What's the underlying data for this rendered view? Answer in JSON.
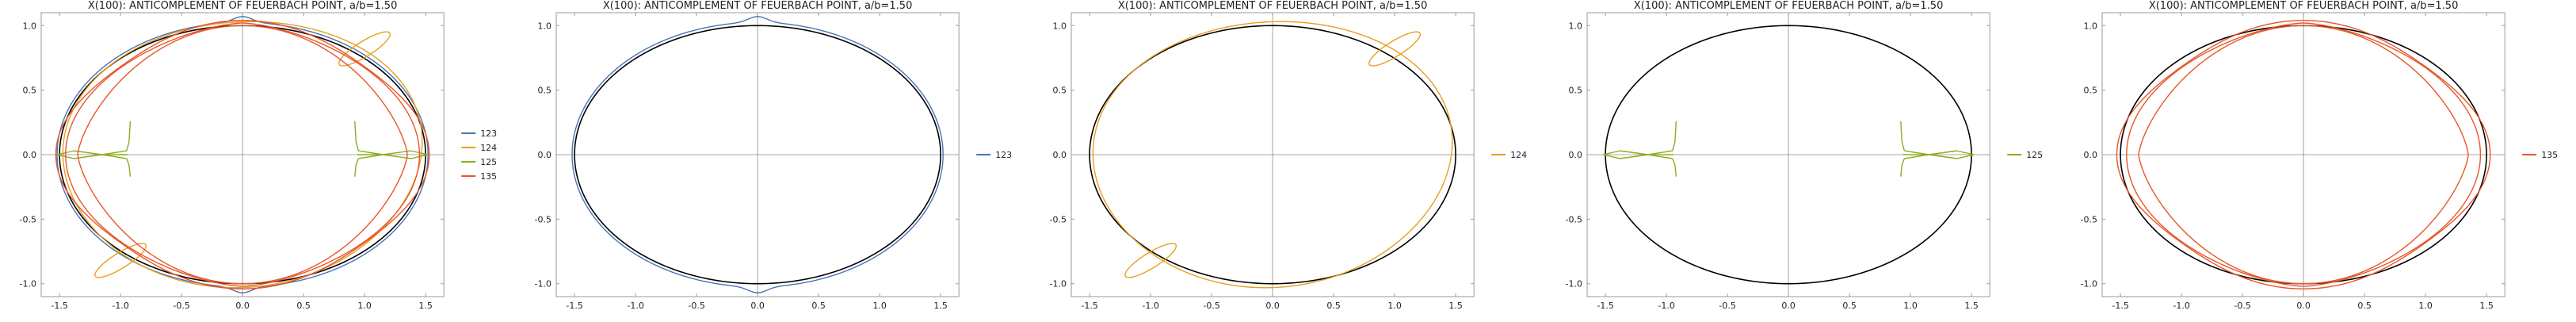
{
  "colors": {
    "background": "#ffffff",
    "frame": "#9a9a9a",
    "axis": "#8c8c8c",
    "reference_ellipse": "#000000",
    "text": "#222222",
    "series": {
      "123": "#4a74b5",
      "124": "#e6a020",
      "125": "#8aae1e",
      "135": "#e8562a"
    }
  },
  "chart_data": [
    {
      "type": "line",
      "title": "X(100): ANTICOMPLEMENT OF FEUERBACH POINT, a/b=1.50",
      "xlim": [
        -1.65,
        1.65
      ],
      "ylim": [
        -1.1,
        1.1
      ],
      "xticks": [
        -1.5,
        -1.0,
        -0.5,
        0.0,
        0.5,
        1.0,
        1.5
      ],
      "xtick_labels": [
        "-1.5",
        "-1.0",
        "-0.5",
        "0.0",
        "0.5",
        "1.0",
        "1.5"
      ],
      "yticks": [
        -1.0,
        -0.5,
        0.0,
        0.5,
        1.0
      ],
      "ytick_labels": [
        "-1.0",
        "-0.5",
        "0.0",
        "0.5",
        "1.0"
      ],
      "reference_ellipse": {
        "a": 1.5,
        "b": 1.0
      },
      "legend": "right",
      "series": [
        {
          "name": "123",
          "kind": "s123"
        },
        {
          "name": "124",
          "kind": "s124"
        },
        {
          "name": "125",
          "kind": "s125"
        },
        {
          "name": "135",
          "kind": "s135"
        }
      ]
    },
    {
      "type": "line",
      "title": "X(100): ANTICOMPLEMENT OF FEUERBACH POINT, a/b=1.50",
      "xlim": [
        -1.65,
        1.65
      ],
      "ylim": [
        -1.1,
        1.1
      ],
      "xticks": [
        -1.5,
        -1.0,
        -0.5,
        0.0,
        0.5,
        1.0,
        1.5
      ],
      "xtick_labels": [
        "-1.5",
        "-1.0",
        "-0.5",
        "0.0",
        "0.5",
        "1.0",
        "1.5"
      ],
      "yticks": [
        -1.0,
        -0.5,
        0.0,
        0.5,
        1.0
      ],
      "ytick_labels": [
        "-1.0",
        "-0.5",
        "0.0",
        "0.5",
        "1.0"
      ],
      "reference_ellipse": {
        "a": 1.5,
        "b": 1.0
      },
      "legend": "right",
      "series": [
        {
          "name": "123",
          "kind": "s123"
        }
      ]
    },
    {
      "type": "line",
      "title": "X(100): ANTICOMPLEMENT OF FEUERBACH POINT, a/b=1.50",
      "xlim": [
        -1.65,
        1.65
      ],
      "ylim": [
        -1.1,
        1.1
      ],
      "xticks": [
        -1.5,
        -1.0,
        -0.5,
        0.0,
        0.5,
        1.0,
        1.5
      ],
      "xtick_labels": [
        "-1.5",
        "-1.0",
        "-0.5",
        "0.0",
        "0.5",
        "1.0",
        "1.5"
      ],
      "yticks": [
        -1.0,
        -0.5,
        0.0,
        0.5,
        1.0
      ],
      "ytick_labels": [
        "-1.0",
        "-0.5",
        "0.0",
        "0.5",
        "1.0"
      ],
      "reference_ellipse": {
        "a": 1.5,
        "b": 1.0
      },
      "legend": "right",
      "series": [
        {
          "name": "124",
          "kind": "s124"
        }
      ]
    },
    {
      "type": "line",
      "title": "X(100): ANTICOMPLEMENT OF FEUERBACH POINT, a/b=1.50",
      "xlim": [
        -1.65,
        1.65
      ],
      "ylim": [
        -1.1,
        1.1
      ],
      "xticks": [
        -1.5,
        -1.0,
        -0.5,
        0.0,
        0.5,
        1.0,
        1.5
      ],
      "xtick_labels": [
        "-1.5",
        "-1.0",
        "-0.5",
        "0.0",
        "0.5",
        "1.0",
        "1.5"
      ],
      "yticks": [
        -1.0,
        -0.5,
        0.0,
        0.5,
        1.0
      ],
      "ytick_labels": [
        "-1.0",
        "-0.5",
        "0.0",
        "0.5",
        "1.0"
      ],
      "reference_ellipse": {
        "a": 1.5,
        "b": 1.0
      },
      "legend": "right",
      "series": [
        {
          "name": "125",
          "kind": "s125"
        }
      ]
    },
    {
      "type": "line",
      "title": "X(100): ANTICOMPLEMENT OF FEUERBACH POINT, a/b=1.50",
      "xlim": [
        -1.65,
        1.65
      ],
      "ylim": [
        -1.1,
        1.1
      ],
      "xticks": [
        -1.5,
        -1.0,
        -0.5,
        0.0,
        0.5,
        1.0,
        1.5
      ],
      "xtick_labels": [
        "-1.5",
        "-1.0",
        "-0.5",
        "0.0",
        "0.5",
        "1.0",
        "1.5"
      ],
      "yticks": [
        -1.0,
        -0.5,
        0.0,
        0.5,
        1.0
      ],
      "ytick_labels": [
        "-1.0",
        "-0.5",
        "0.0",
        "0.5",
        "1.0"
      ],
      "reference_ellipse": {
        "a": 1.5,
        "b": 1.0
      },
      "legend": "right",
      "series": [
        {
          "name": "135",
          "kind": "s135"
        }
      ]
    }
  ]
}
